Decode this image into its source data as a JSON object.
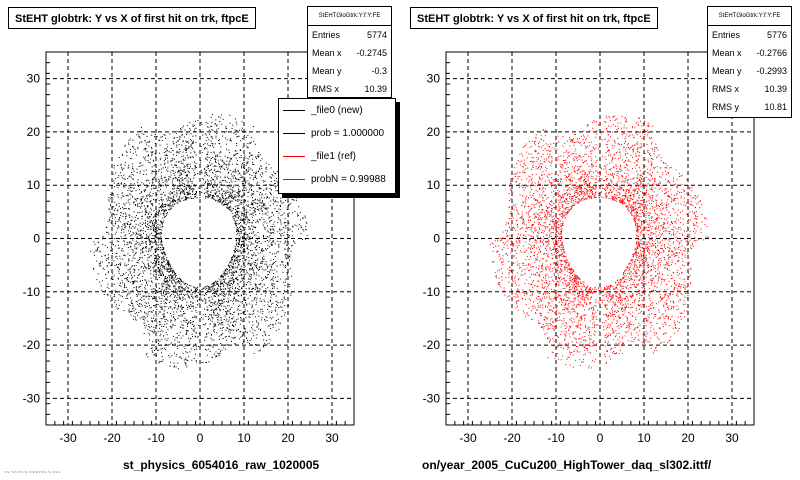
{
  "chart_data": [
    {
      "type": "scatter",
      "title": "StEHT globtrk: Y vs X of first hit on trk, ftpcE",
      "xlim": [
        -35,
        35
      ],
      "ylim": [
        -35,
        35
      ],
      "xticks": [
        -30,
        -20,
        -10,
        0,
        10,
        20,
        30
      ],
      "yticks": [
        30,
        20,
        10,
        0,
        -10,
        -20,
        -30
      ],
      "grid": true,
      "point_color": "#000000",
      "stats": {
        "header": "StEHTGloGtrk:Y:f:Y:FE",
        "rows": [
          {
            "label": "Entries",
            "value": "5774"
          },
          {
            "label": "Mean x",
            "value": "-0.2745"
          },
          {
            "label": "Mean y",
            "value": "-0.3"
          },
          {
            "label": "RMS x",
            "value": "10.39"
          }
        ]
      },
      "legend": [
        {
          "label": "_file0 (new)",
          "color": "#000000"
        },
        {
          "label": "prob = 1.000000",
          "color": "#000000"
        },
        {
          "label": "_file1 (ref)",
          "color": "#ff0000"
        },
        {
          "label": "probN = 0.99988",
          "color": "#ff0000"
        }
      ],
      "distribution": {
        "shape": "annulus",
        "inner_radius": 8,
        "outer_radius": 25,
        "entries": 5774
      }
    },
    {
      "type": "scatter",
      "title": "StEHT globtrk: Y vs X of first hit on trk, ftpcE",
      "xlim": [
        -35,
        35
      ],
      "ylim": [
        -35,
        35
      ],
      "xticks": [
        -30,
        -20,
        -10,
        0,
        10,
        20,
        30
      ],
      "yticks": [
        30,
        20,
        10,
        0,
        -10,
        -20,
        -30
      ],
      "grid": true,
      "point_color": "#ff0000",
      "stats": {
        "header": "StEHTGloGtrk:Y:f:Y:FE",
        "rows": [
          {
            "label": "Entries",
            "value": "5776"
          },
          {
            "label": "Mean x",
            "value": "-0.2766"
          },
          {
            "label": "Mean y",
            "value": "-0.2993"
          },
          {
            "label": "RMS x",
            "value": "10.39"
          },
          {
            "label": "RMS y",
            "value": "10.81"
          }
        ]
      },
      "distribution": {
        "shape": "annulus",
        "inner_radius": 8,
        "outer_radius": 25,
        "entries": 5776
      }
    }
  ],
  "footer": {
    "left_file": "st_physics_6054016_raw_1020005",
    "right_file": "on/year_2005_CuCu200_HighTower_daq_sl302.ittf/",
    "tiny": "~~ ~~~~ ~ ~~~~~~ ~ ~~~"
  }
}
